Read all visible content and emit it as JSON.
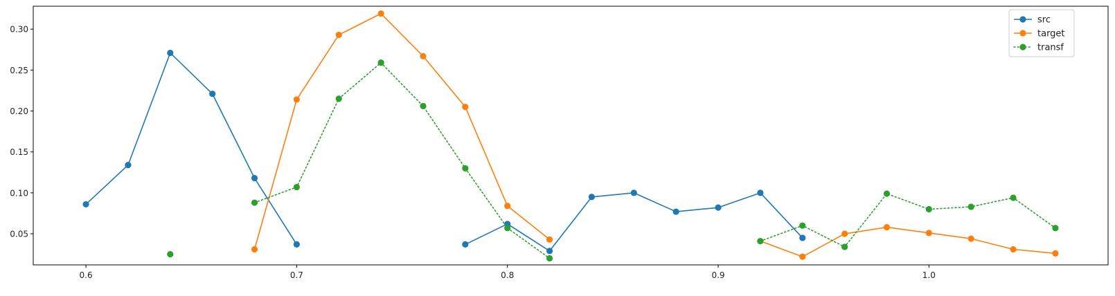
{
  "chart_data": {
    "type": "line",
    "xlim": [
      0.575,
      1.085
    ],
    "ylim": [
      0.012,
      0.328
    ],
    "x_ticks": [
      "0.6",
      "0.7",
      "0.8",
      "0.9",
      "1.0"
    ],
    "y_ticks": [
      "0.05",
      "0.10",
      "0.15",
      "0.20",
      "0.25",
      "0.30"
    ],
    "grid": false,
    "legend_position": "top-right",
    "series": [
      {
        "name": "src",
        "color": "#1f77b4",
        "line_style": "solid",
        "segments": [
          [
            [
              0.6,
              0.086
            ],
            [
              0.62,
              0.134
            ],
            [
              0.64,
              0.271
            ],
            [
              0.66,
              0.221
            ],
            [
              0.68,
              0.118
            ],
            [
              0.7,
              0.037
            ]
          ],
          [
            [
              0.78,
              0.037
            ],
            [
              0.8,
              0.062
            ],
            [
              0.82,
              0.029
            ],
            [
              0.84,
              0.095
            ],
            [
              0.86,
              0.1
            ],
            [
              0.88,
              0.077
            ],
            [
              0.9,
              0.082
            ],
            [
              0.92,
              0.1
            ],
            [
              0.94,
              0.045
            ]
          ]
        ]
      },
      {
        "name": "target",
        "color": "#ff7f0e",
        "line_style": "solid",
        "segments": [
          [
            [
              0.68,
              0.031
            ],
            [
              0.7,
              0.214
            ],
            [
              0.72,
              0.293
            ],
            [
              0.74,
              0.319
            ],
            [
              0.76,
              0.267
            ],
            [
              0.78,
              0.205
            ],
            [
              0.8,
              0.084
            ],
            [
              0.82,
              0.043
            ]
          ],
          [
            [
              0.92,
              0.041
            ],
            [
              0.94,
              0.022
            ],
            [
              0.96,
              0.05
            ],
            [
              0.98,
              0.058
            ],
            [
              1.0,
              0.051
            ],
            [
              1.02,
              0.044
            ],
            [
              1.04,
              0.031
            ],
            [
              1.06,
              0.026
            ]
          ]
        ]
      },
      {
        "name": "transf",
        "color": "#2ca02c",
        "line_style": "dotted",
        "segments": [
          [
            [
              0.64,
              0.025
            ]
          ],
          [
            [
              0.68,
              0.088
            ],
            [
              0.7,
              0.107
            ],
            [
              0.72,
              0.215
            ],
            [
              0.74,
              0.259
            ],
            [
              0.76,
              0.206
            ],
            [
              0.78,
              0.13
            ],
            [
              0.8,
              0.057
            ],
            [
              0.82,
              0.02
            ]
          ],
          [
            [
              0.92,
              0.041
            ],
            [
              0.94,
              0.06
            ],
            [
              0.96,
              0.034
            ],
            [
              0.98,
              0.099
            ],
            [
              1.0,
              0.08
            ],
            [
              1.02,
              0.083
            ],
            [
              1.04,
              0.094
            ],
            [
              1.06,
              0.057
            ]
          ]
        ]
      }
    ]
  }
}
